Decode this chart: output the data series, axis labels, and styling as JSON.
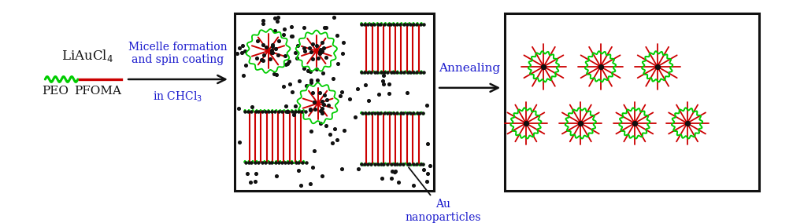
{
  "bg_color": "#ffffff",
  "text_color": "#111111",
  "blue_text_color": "#1a1acd",
  "green_color": "#00cc00",
  "red_color": "#cc0000",
  "black_color": "#111111",
  "figsize": [
    10.21,
    2.84
  ],
  "dpi": 100,
  "liaucl4": "LiAuCl$_4$",
  "peo": "PEO",
  "pfoma": "PFOMA",
  "arrow1_l1": "Micelle formation",
  "arrow1_l2": "and spin coating",
  "arrow1_l3": "in CHCl$_3$",
  "arrow2": "Annealing",
  "au_label": "Au\nnanoparticles"
}
